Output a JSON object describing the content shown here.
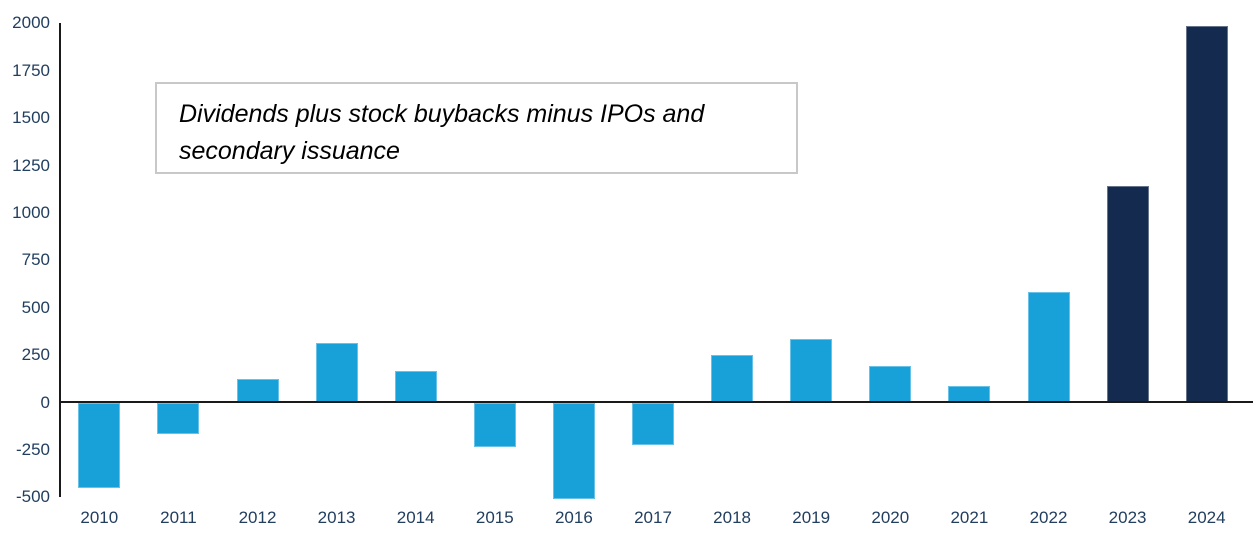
{
  "colors": {
    "bar_light_blue": "#18a0d9",
    "bar_dark_navy": "#142a4e",
    "axis_line": "#1a1a1a",
    "tick_label": "#223e5f",
    "annotation_border": "#c8c8c8",
    "annotation_text": "#000000"
  },
  "chart_data": {
    "type": "bar",
    "title": "",
    "xlabel": "",
    "ylabel": "",
    "annotation": "Dividends plus stock buybacks minus IPOs and secondary issuance",
    "categories": [
      "2010",
      "2011",
      "2012",
      "2013",
      "2014",
      "2015",
      "2016",
      "2017",
      "2018",
      "2019",
      "2020",
      "2021",
      "2022",
      "2023",
      "2024"
    ],
    "values": [
      -450,
      -165,
      125,
      315,
      165,
      -235,
      -510,
      -225,
      250,
      335,
      195,
      85,
      585,
      1140,
      1985
    ],
    "bar_colors": [
      "#18a0d9",
      "#18a0d9",
      "#18a0d9",
      "#18a0d9",
      "#18a0d9",
      "#18a0d9",
      "#18a0d9",
      "#18a0d9",
      "#18a0d9",
      "#18a0d9",
      "#18a0d9",
      "#18a0d9",
      "#18a0d9",
      "#142a4e",
      "#142a4e"
    ],
    "ylim": [
      -500,
      2000
    ],
    "ytick_step": 250,
    "ytick_labels": [
      "-500",
      "-250",
      "0",
      "250",
      "500",
      "750",
      "1000",
      "1250",
      "1500",
      "1750",
      "2000"
    ],
    "grid": false,
    "legend": "none"
  }
}
